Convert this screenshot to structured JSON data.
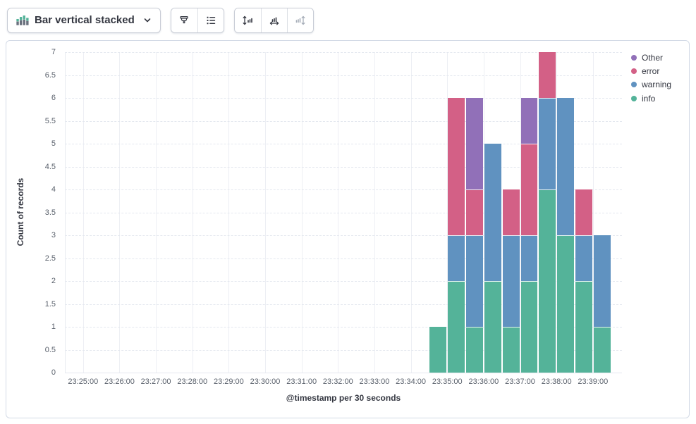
{
  "toolbar": {
    "chart_type_label": "Bar vertical stacked",
    "icons": {
      "chart_type": "bar-vertical-stacked-icon",
      "dropdown": "chevron-down-icon",
      "style_group": [
        "brush-icon",
        "list-icon"
      ],
      "axes_group": [
        "axis-left-icon",
        "axis-bottom-icon",
        "axis-right-icon"
      ],
      "axes_group_disabled": [
        false,
        false,
        true
      ]
    }
  },
  "colors": {
    "panel_border": "#D3DAE6",
    "grid_vertical": "#edeff4",
    "grid_horizontal_dashed": "#e4e8ef",
    "tick_text": "#5a616c",
    "axis_title_text": "#343741",
    "toolbar_icon": "#343741",
    "toolbar_icon_disabled": "#a6adb8",
    "icon_green": "#54B399",
    "icon_gray": "#69707D"
  },
  "chart_data": {
    "type": "bar",
    "subtype": "vertical_stacked",
    "title": "",
    "xlabel": "@timestamp per 30 seconds",
    "ylabel": "Count of records",
    "ylim": [
      0,
      7
    ],
    "ytick_step": 0.5,
    "ytick_labels": [
      "0",
      "0.5",
      "1",
      "1.5",
      "2",
      "2.5",
      "3",
      "3.5",
      "4",
      "4.5",
      "5",
      "5.5",
      "6",
      "6.5",
      "7"
    ],
    "xtick_labels": [
      "23:25:00",
      "23:26:00",
      "23:27:00",
      "23:28:00",
      "23:29:00",
      "23:30:00",
      "23:31:00",
      "23:32:00",
      "23:33:00",
      "23:34:00",
      "23:35:00",
      "23:36:00",
      "23:37:00",
      "23:38:00",
      "23:39:00"
    ],
    "x_interval_seconds": 30,
    "grid": true,
    "legend_position": "right",
    "legend_items": [
      {
        "label": "Other",
        "color": "#9170B8"
      },
      {
        "label": "error",
        "color": "#D36086"
      },
      {
        "label": "warning",
        "color": "#6092C0"
      },
      {
        "label": "info",
        "color": "#54B399"
      }
    ],
    "stack_order_bottom_to_top": [
      "info",
      "warning",
      "error",
      "Other"
    ],
    "bars": [
      {
        "time": "23:34:30",
        "info": 1,
        "warning": 0,
        "error": 0,
        "Other": 0
      },
      {
        "time": "23:35:00",
        "info": 2,
        "warning": 1,
        "error": 3,
        "Other": 0
      },
      {
        "time": "23:35:30",
        "info": 1,
        "warning": 2,
        "error": 1,
        "Other": 2
      },
      {
        "time": "23:36:00",
        "info": 2,
        "warning": 3,
        "error": 0,
        "Other": 0
      },
      {
        "time": "23:36:30",
        "info": 1,
        "warning": 2,
        "error": 1,
        "Other": 0
      },
      {
        "time": "23:37:00",
        "info": 2,
        "warning": 1,
        "error": 2,
        "Other": 1
      },
      {
        "time": "23:37:30",
        "info": 4,
        "warning": 2,
        "error": 1,
        "Other": 0
      },
      {
        "time": "23:38:00",
        "info": 3,
        "warning": 3,
        "error": 0,
        "Other": 0
      },
      {
        "time": "23:38:30",
        "info": 2,
        "warning": 1,
        "error": 1,
        "Other": 0
      },
      {
        "time": "23:39:00",
        "info": 1,
        "warning": 2,
        "error": 0,
        "Other": 0
      }
    ]
  }
}
